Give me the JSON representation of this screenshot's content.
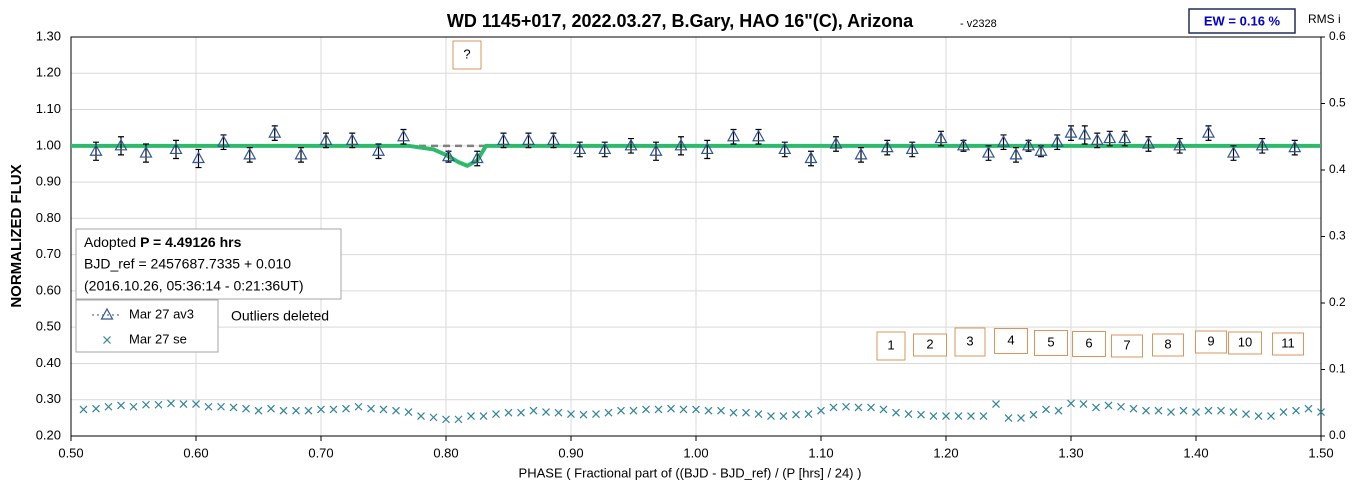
{
  "chart_data": {
    "type": "scatter",
    "title": "WD 1145+017, 2022.03.27, B.Gary, HAO 16\"(C), Arizona",
    "subtitle": "- v2328",
    "ew_label": "EW = 0.16 %",
    "xlabel": "PHASE ( Fractional part of ((BJD - BJD_ref) / (P [hrs] / 24) )",
    "ylabel": "NORMALIZED FLUX",
    "y2label": "RMS i",
    "info": [
      "Adopted",
      "P = 4.49126 hrs",
      "BJD_ref = 2457687.7335 + 0.010",
      "(2016.10.26, 05:36:14 - 0:21:36UT)"
    ],
    "annotations": [
      "?",
      "Outliers deleted"
    ],
    "event_labels": [
      "1",
      "2",
      "3",
      "4",
      "5",
      "6",
      "7",
      "8",
      "9",
      "10",
      "11"
    ],
    "xlim": [
      0.5,
      1.5
    ],
    "ylim": [
      0.2,
      1.3
    ],
    "y2lim": [
      0,
      0.6
    ],
    "grid": true,
    "xticks": [
      {
        "value": 0.5,
        "label": "0.50"
      },
      {
        "value": 0.6,
        "label": "0.60"
      },
      {
        "value": 0.7,
        "label": "0.70"
      },
      {
        "value": 0.8,
        "label": "0.80"
      },
      {
        "value": 0.9,
        "label": "0.90"
      },
      {
        "value": 1.0,
        "label": "1.00"
      },
      {
        "value": 1.1,
        "label": "1.10"
      },
      {
        "value": 1.2,
        "label": "1.20"
      },
      {
        "value": 1.3,
        "label": "1.30"
      },
      {
        "value": 1.4,
        "label": "1.40"
      },
      {
        "value": 1.5,
        "label": "1.50"
      }
    ],
    "yticks": [
      {
        "value": 0.2,
        "label": "0.20"
      },
      {
        "value": 0.3,
        "label": "0.30"
      },
      {
        "value": 0.4,
        "label": "0.40"
      },
      {
        "value": 0.5,
        "label": "0.50"
      },
      {
        "value": 0.6,
        "label": "0.60"
      },
      {
        "value": 0.7,
        "label": "0.70"
      },
      {
        "value": 0.8,
        "label": "0.80"
      },
      {
        "value": 0.9,
        "label": "0.90"
      },
      {
        "value": 1.0,
        "label": "1.00"
      },
      {
        "value": 1.1,
        "label": "1.10"
      },
      {
        "value": 1.2,
        "label": "1.20"
      },
      {
        "value": 1.3,
        "label": "1.30"
      }
    ],
    "y2ticks": [
      {
        "value": 0,
        "label": "0.0"
      },
      0.1,
      0.2,
      0.3,
      0.4,
      0.5,
      0.6
    ],
    "series": [
      {
        "name": "Mar 27 av3",
        "color": "#2f5597",
        "marker": "triangle",
        "x": [
          0.52,
          0.54,
          0.56,
          0.584,
          0.602,
          0.622,
          0.643,
          0.663,
          0.684,
          0.704,
          0.725,
          0.746,
          0.766,
          0.802,
          0.825,
          0.846,
          0.866,
          0.886,
          0.907,
          0.927,
          0.948,
          0.968,
          0.988,
          1.009,
          1.03,
          1.05,
          1.071,
          1.092,
          1.112,
          1.132,
          1.153,
          1.173,
          1.196,
          1.214,
          1.234,
          1.246,
          1.256,
          1.266,
          1.276,
          1.289,
          1.3,
          1.311,
          1.321,
          1.331,
          1.343,
          1.362,
          1.387,
          1.41,
          1.43,
          1.453,
          1.479
        ],
        "values": [
          0.985,
          1.0,
          0.98,
          0.99,
          0.965,
          1.01,
          0.975,
          1.035,
          0.975,
          1.015,
          1.015,
          0.985,
          1.025,
          0.97,
          0.965,
          1.015,
          1.015,
          1.015,
          0.99,
          0.99,
          1.0,
          0.985,
          1.0,
          0.99,
          1.025,
          1.025,
          0.99,
          0.965,
          1.005,
          0.975,
          0.995,
          0.99,
          1.02,
          1.0,
          0.98,
          1.01,
          0.975,
          1.0,
          0.985,
          1.01,
          1.035,
          1.03,
          1.015,
          1.02,
          1.02,
          1.005,
          1.0,
          1.035,
          0.98,
          1.0,
          0.995
        ],
        "errors": [
          0.025,
          0.025,
          0.025,
          0.025,
          0.025,
          0.02,
          0.02,
          0.02,
          0.02,
          0.02,
          0.02,
          0.02,
          0.02,
          0.015,
          0.02,
          0.02,
          0.02,
          0.02,
          0.02,
          0.02,
          0.02,
          0.025,
          0.025,
          0.025,
          0.02,
          0.02,
          0.02,
          0.02,
          0.02,
          0.02,
          0.02,
          0.02,
          0.02,
          0.015,
          0.02,
          0.02,
          0.02,
          0.015,
          0.015,
          0.02,
          0.02,
          0.025,
          0.02,
          0.02,
          0.02,
          0.02,
          0.02,
          0.02,
          0.02,
          0.02,
          0.02
        ]
      },
      {
        "name": "Mar 27 se",
        "color": "#31849b",
        "marker": "x",
        "axis": "y2",
        "x": [
          0.51,
          0.52,
          0.53,
          0.54,
          0.55,
          0.56,
          0.57,
          0.58,
          0.59,
          0.6,
          0.61,
          0.62,
          0.63,
          0.64,
          0.65,
          0.66,
          0.67,
          0.68,
          0.69,
          0.7,
          0.71,
          0.72,
          0.73,
          0.74,
          0.75,
          0.76,
          0.77,
          0.78,
          0.79,
          0.8,
          0.81,
          0.82,
          0.83,
          0.84,
          0.85,
          0.86,
          0.87,
          0.88,
          0.89,
          0.9,
          0.91,
          0.92,
          0.93,
          0.94,
          0.95,
          0.96,
          0.97,
          0.98,
          0.99,
          1.0,
          1.01,
          1.02,
          1.03,
          1.04,
          1.05,
          1.06,
          1.07,
          1.08,
          1.09,
          1.1,
          1.11,
          1.12,
          1.13,
          1.14,
          1.15,
          1.16,
          1.17,
          1.18,
          1.19,
          1.2,
          1.21,
          1.22,
          1.23,
          1.24,
          1.25,
          1.26,
          1.27,
          1.28,
          1.29,
          1.3,
          1.31,
          1.32,
          1.33,
          1.34,
          1.35,
          1.36,
          1.37,
          1.38,
          1.39,
          1.4,
          1.41,
          1.42,
          1.43,
          1.44,
          1.45,
          1.46,
          1.47,
          1.48,
          1.49,
          1.5
        ],
        "values": [
          0.04,
          0.041,
          0.044,
          0.046,
          0.044,
          0.047,
          0.047,
          0.049,
          0.048,
          0.048,
          0.044,
          0.044,
          0.043,
          0.041,
          0.038,
          0.041,
          0.038,
          0.038,
          0.038,
          0.04,
          0.04,
          0.041,
          0.044,
          0.041,
          0.04,
          0.038,
          0.036,
          0.03,
          0.028,
          0.025,
          0.025,
          0.03,
          0.03,
          0.033,
          0.035,
          0.035,
          0.038,
          0.036,
          0.035,
          0.033,
          0.032,
          0.033,
          0.035,
          0.038,
          0.038,
          0.04,
          0.04,
          0.041,
          0.04,
          0.04,
          0.038,
          0.038,
          0.035,
          0.035,
          0.033,
          0.03,
          0.03,
          0.032,
          0.033,
          0.038,
          0.043,
          0.044,
          0.043,
          0.043,
          0.04,
          0.035,
          0.033,
          0.032,
          0.03,
          0.03,
          0.03,
          0.03,
          0.03,
          0.048,
          0.027,
          0.027,
          0.032,
          0.04,
          0.038,
          0.049,
          0.048,
          0.043,
          0.046,
          0.044,
          0.041,
          0.038,
          0.038,
          0.036,
          0.038,
          0.036,
          0.038,
          0.038,
          0.036,
          0.033,
          0.03,
          0.03,
          0.036,
          0.038,
          0.041,
          0.036
        ]
      },
      {
        "color": "#808080",
        "marker": "none",
        "line": "dashed",
        "x": [
          0.5,
          1.5
        ],
        "values": [
          1.0,
          1.0
        ]
      },
      {
        "color": "#2dbb6b",
        "marker": "none",
        "line": "solid",
        "x": [
          0.5,
          0.77,
          0.79,
          0.8,
          0.81,
          0.817,
          0.825,
          0.832,
          1.5
        ],
        "values": [
          1.0,
          1.0,
          0.99,
          0.975,
          0.955,
          0.945,
          0.96,
          1.0,
          1.0
        ]
      }
    ]
  }
}
